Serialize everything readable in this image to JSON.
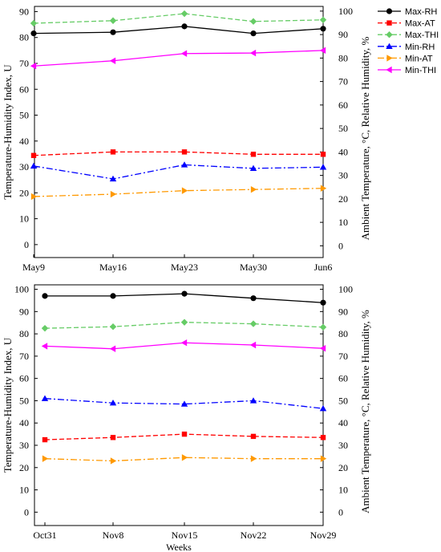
{
  "chart_data": [
    {
      "type": "line",
      "categories": [
        "May9",
        "May16",
        "May23",
        "May30",
        "Jun6"
      ],
      "xlabel": "",
      "ylabel_left": "Temperature-Humidity Index, U",
      "ylabel_right": "Ambient Temperature, °C, Relative Humidity, %",
      "ylim_left": [
        -5,
        92
      ],
      "ylim_right": [
        -5,
        102
      ],
      "yticks_left": [
        0,
        10,
        20,
        30,
        40,
        50,
        60,
        70,
        80,
        90
      ],
      "yticks_right": [
        0,
        10,
        20,
        30,
        40,
        50,
        60,
        70,
        80,
        90,
        100
      ],
      "series": [
        {
          "name": "Max-RH",
          "axis": "right",
          "values": [
            90.5,
            91,
            93.5,
            90.5,
            92.5
          ]
        },
        {
          "name": "Max-AT",
          "axis": "right",
          "values": [
            38.5,
            40,
            40,
            39,
            39
          ]
        },
        {
          "name": "Max-THI",
          "axis": "left",
          "values": [
            85.5,
            86.5,
            89.2,
            86.2,
            86.8
          ]
        },
        {
          "name": "Min-RH",
          "axis": "right",
          "values": [
            34,
            28.5,
            34.5,
            33,
            33.5
          ]
        },
        {
          "name": "Min-AT",
          "axis": "right",
          "values": [
            21,
            22,
            23.5,
            24,
            24.5
          ]
        },
        {
          "name": "Min-THI",
          "axis": "left",
          "values": [
            69,
            71,
            73.8,
            74,
            75
          ]
        }
      ]
    },
    {
      "type": "line",
      "categories": [
        "Oct31",
        "Nov8",
        "Nov15",
        "Nov22",
        "Nov29"
      ],
      "xlabel": "Weeks",
      "ylabel_left": "Temperature-Humidity Index, U",
      "ylabel_right": "Ambient Temperature, °C, Relative Humidity, %",
      "ylim_left": [
        -6,
        102
      ],
      "ylim_right": [
        -6,
        102
      ],
      "yticks_left": [
        0,
        10,
        20,
        30,
        40,
        50,
        60,
        70,
        80,
        90,
        100
      ],
      "yticks_right": [
        0,
        10,
        20,
        30,
        40,
        50,
        60,
        70,
        80,
        90,
        100
      ],
      "series": [
        {
          "name": "Max-RH",
          "axis": "right",
          "values": [
            97,
            97,
            98,
            96,
            94
          ]
        },
        {
          "name": "Max-AT",
          "axis": "right",
          "values": [
            32.5,
            33.5,
            35,
            34,
            33.5
          ]
        },
        {
          "name": "Max-THI",
          "axis": "left",
          "values": [
            82.5,
            83.2,
            85.2,
            84.5,
            83
          ]
        },
        {
          "name": "Min-RH",
          "axis": "right",
          "values": [
            51,
            49,
            48.5,
            50,
            46.5
          ]
        },
        {
          "name": "Min-AT",
          "axis": "right",
          "values": [
            24,
            23,
            24.5,
            24,
            24
          ]
        },
        {
          "name": "Min-THI",
          "axis": "left",
          "values": [
            74.5,
            73.3,
            76,
            75,
            73.5
          ]
        }
      ]
    }
  ],
  "legend": [
    {
      "name": "Max-RH",
      "color": "#000000",
      "marker": "circle",
      "dash": ""
    },
    {
      "name": "Max-AT",
      "color": "#ff0000",
      "marker": "square",
      "dash": "6,3"
    },
    {
      "name": "Max-THI",
      "color": "#66cc66",
      "marker": "diamond",
      "dash": "6,3"
    },
    {
      "name": "Min-RH",
      "color": "#0000ff",
      "marker": "triangle-up",
      "dash": "8,3,2,3"
    },
    {
      "name": "Min-AT",
      "color": "#ff9900",
      "marker": "triangle-right",
      "dash": "8,3,2,3"
    },
    {
      "name": "Min-THI",
      "color": "#ff00ff",
      "marker": "triangle-left",
      "dash": ""
    }
  ]
}
